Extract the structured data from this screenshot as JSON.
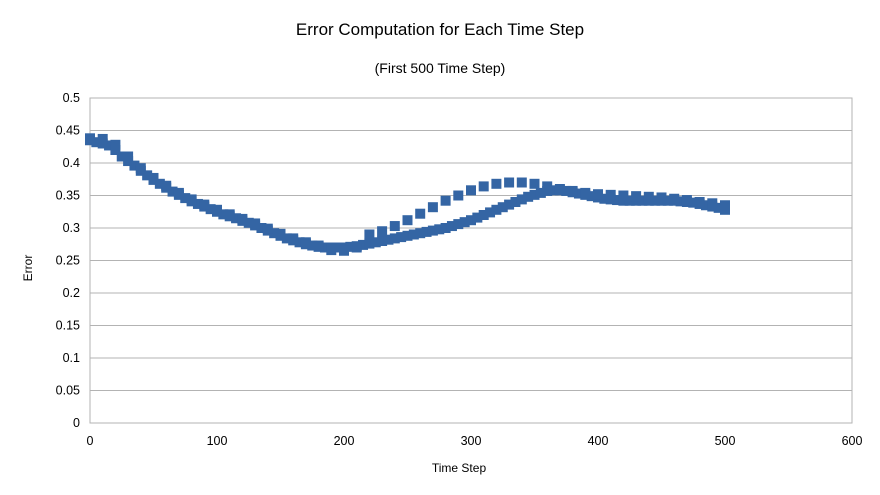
{
  "chart_data": {
    "type": "scatter",
    "title": "Error Computation for Each Time Step",
    "subtitle": "(First 500 Time Step)",
    "xlabel": "Time Step",
    "ylabel": "Error",
    "xlim": [
      0,
      600
    ],
    "ylim": [
      0,
      0.5
    ],
    "xticks": [
      "0",
      "100",
      "200",
      "300",
      "400",
      "500",
      "600"
    ],
    "yticks": [
      "0",
      "0.05",
      "0.1",
      "0.15",
      "0.2",
      "0.25",
      "0.3",
      "0.35",
      "0.4",
      "0.45",
      "0.5"
    ],
    "grid": "horizontal",
    "marker": "square",
    "series_color": "#3465a4",
    "series": [
      {
        "points": [
          [
            0,
            0.435
          ],
          [
            5,
            0.432
          ],
          [
            10,
            0.43
          ],
          [
            15,
            0.427
          ],
          [
            20,
            0.42
          ],
          [
            25,
            0.41
          ],
          [
            30,
            0.403
          ],
          [
            35,
            0.396
          ],
          [
            40,
            0.388
          ],
          [
            45,
            0.381
          ],
          [
            50,
            0.374
          ],
          [
            55,
            0.368
          ],
          [
            60,
            0.362
          ],
          [
            65,
            0.356
          ],
          [
            70,
            0.351
          ],
          [
            75,
            0.346
          ],
          [
            80,
            0.341
          ],
          [
            85,
            0.337
          ],
          [
            90,
            0.333
          ],
          [
            95,
            0.329
          ],
          [
            100,
            0.325
          ],
          [
            105,
            0.321
          ],
          [
            110,
            0.318
          ],
          [
            115,
            0.315
          ],
          [
            120,
            0.311
          ],
          [
            125,
            0.308
          ],
          [
            130,
            0.304
          ],
          [
            135,
            0.3
          ],
          [
            140,
            0.296
          ],
          [
            145,
            0.292
          ],
          [
            150,
            0.288
          ],
          [
            155,
            0.284
          ],
          [
            160,
            0.281
          ],
          [
            165,
            0.278
          ],
          [
            170,
            0.275
          ],
          [
            175,
            0.273
          ],
          [
            180,
            0.271
          ],
          [
            185,
            0.27
          ],
          [
            190,
            0.27
          ],
          [
            195,
            0.27
          ],
          [
            200,
            0.27
          ],
          [
            205,
            0.271
          ],
          [
            210,
            0.272
          ],
          [
            215,
            0.274
          ],
          [
            220,
            0.276
          ],
          [
            225,
            0.278
          ],
          [
            230,
            0.28
          ],
          [
            235,
            0.282
          ],
          [
            240,
            0.284
          ],
          [
            245,
            0.286
          ],
          [
            250,
            0.288
          ],
          [
            255,
            0.29
          ],
          [
            260,
            0.292
          ],
          [
            265,
            0.294
          ],
          [
            270,
            0.296
          ],
          [
            275,
            0.298
          ],
          [
            280,
            0.3
          ],
          [
            285,
            0.303
          ],
          [
            290,
            0.306
          ],
          [
            295,
            0.309
          ],
          [
            300,
            0.312
          ],
          [
            305,
            0.316
          ],
          [
            310,
            0.32
          ],
          [
            315,
            0.324
          ],
          [
            320,
            0.328
          ],
          [
            325,
            0.332
          ],
          [
            330,
            0.336
          ],
          [
            335,
            0.34
          ],
          [
            340,
            0.344
          ],
          [
            345,
            0.348
          ],
          [
            350,
            0.351
          ],
          [
            355,
            0.354
          ],
          [
            360,
            0.357
          ],
          [
            365,
            0.358
          ],
          [
            370,
            0.358
          ],
          [
            375,
            0.357
          ],
          [
            380,
            0.355
          ],
          [
            385,
            0.353
          ],
          [
            390,
            0.351
          ],
          [
            395,
            0.349
          ],
          [
            400,
            0.347
          ],
          [
            405,
            0.345
          ],
          [
            410,
            0.344
          ],
          [
            415,
            0.343
          ],
          [
            420,
            0.342
          ],
          [
            425,
            0.342
          ],
          [
            430,
            0.342
          ],
          [
            435,
            0.342
          ],
          [
            440,
            0.342
          ],
          [
            445,
            0.342
          ],
          [
            450,
            0.342
          ],
          [
            455,
            0.342
          ],
          [
            460,
            0.342
          ],
          [
            465,
            0.341
          ],
          [
            470,
            0.34
          ],
          [
            475,
            0.339
          ],
          [
            480,
            0.337
          ],
          [
            485,
            0.335
          ],
          [
            490,
            0.333
          ],
          [
            495,
            0.331
          ],
          [
            500,
            0.328
          ]
        ]
      },
      {
        "points": [
          [
            0,
            0.438
          ],
          [
            10,
            0.437
          ],
          [
            20,
            0.428
          ],
          [
            30,
            0.41
          ],
          [
            40,
            0.392
          ],
          [
            50,
            0.377
          ],
          [
            60,
            0.365
          ],
          [
            70,
            0.354
          ],
          [
            80,
            0.344
          ],
          [
            90,
            0.336
          ],
          [
            100,
            0.328
          ],
          [
            110,
            0.321
          ],
          [
            120,
            0.314
          ],
          [
            130,
            0.307
          ],
          [
            140,
            0.299
          ],
          [
            150,
            0.291
          ],
          [
            160,
            0.284
          ],
          [
            170,
            0.278
          ],
          [
            180,
            0.273
          ],
          [
            190,
            0.266
          ],
          [
            200,
            0.265
          ],
          [
            210,
            0.27
          ],
          [
            220,
            0.29
          ],
          [
            230,
            0.295
          ],
          [
            240,
            0.303
          ],
          [
            250,
            0.312
          ],
          [
            260,
            0.322
          ],
          [
            270,
            0.332
          ],
          [
            280,
            0.342
          ],
          [
            290,
            0.35
          ],
          [
            300,
            0.358
          ],
          [
            310,
            0.364
          ],
          [
            320,
            0.368
          ],
          [
            330,
            0.37
          ],
          [
            340,
            0.37
          ],
          [
            350,
            0.368
          ],
          [
            360,
            0.364
          ],
          [
            370,
            0.36
          ],
          [
            380,
            0.357
          ],
          [
            390,
            0.354
          ],
          [
            400,
            0.352
          ],
          [
            410,
            0.351
          ],
          [
            420,
            0.35
          ],
          [
            430,
            0.349
          ],
          [
            440,
            0.348
          ],
          [
            450,
            0.347
          ],
          [
            460,
            0.345
          ],
          [
            470,
            0.343
          ],
          [
            480,
            0.34
          ],
          [
            490,
            0.338
          ],
          [
            500,
            0.335
          ]
        ]
      }
    ]
  }
}
